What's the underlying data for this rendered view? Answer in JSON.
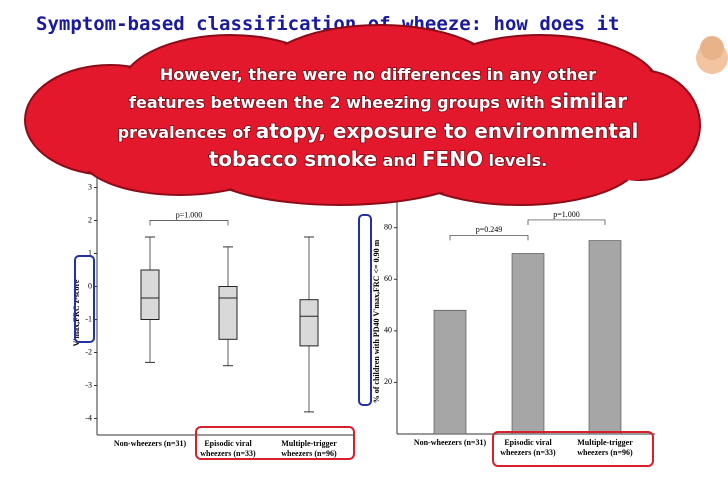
{
  "slide_title": "Symptom-based classification of wheeze: how does it",
  "callout": [
    [
      {
        "text": "However, there were no differences in any other",
        "big": false
      }
    ],
    [
      {
        "text": "features between the 2 wheezing groups with ",
        "big": false
      },
      {
        "text": "similar",
        "big": true
      }
    ],
    [
      {
        "text": "prevalences of ",
        "big": false
      },
      {
        "text": "atopy, exposure to environmental",
        "big": true
      }
    ],
    [
      {
        "text": "tobacco smoke",
        "big": true
      },
      {
        "text": " and ",
        "big": false
      },
      {
        "text": "FENO",
        "big": true
      },
      {
        "text": " levels.",
        "big": false
      }
    ]
  ],
  "chart_data": [
    {
      "type": "box",
      "y_label": "V'max,FRC z-score",
      "categories": [
        [
          "Non-wheezers (n=31)"
        ],
        [
          "Episodic viral",
          "wheezers (n=33)"
        ],
        [
          "Multiple-trigger",
          "wheezers (n=96)"
        ]
      ],
      "boxes": [
        {
          "low": -2.3,
          "q1": -1.0,
          "median": -0.35,
          "q3": 0.5,
          "high": 1.5
        },
        {
          "low": -2.4,
          "q1": -1.6,
          "median": -0.35,
          "q3": 0.0,
          "high": 1.2
        },
        {
          "low": -3.8,
          "q1": -1.8,
          "median": -0.9,
          "q3": -0.4,
          "high": 1.5
        }
      ],
      "color": "#d9d9d9",
      "ylim": [
        -4.5,
        3.5
      ],
      "yticks": [
        -4,
        -3,
        -2,
        -1,
        0,
        1,
        2,
        3
      ],
      "annotations": [
        {
          "text": "p=1.000",
          "from": 0,
          "to": 1,
          "y": 2.0
        }
      ]
    },
    {
      "type": "bar",
      "y_label": "% of children with PD40 V'max,FRC <= 0.90 m",
      "categories": [
        [
          "Non-wheezers (n=31)"
        ],
        [
          "Episodic viral",
          "wheezers (n=33)"
        ],
        [
          "Multiple-trigger",
          "wheezers (n=96)"
        ]
      ],
      "values": [
        48,
        70,
        75
      ],
      "color": "#a6a6a6",
      "ylim": [
        0,
        95
      ],
      "yticks": [
        20,
        40,
        60,
        80
      ],
      "annotations": [
        {
          "text": "p=0.249",
          "from": 0,
          "to": 1,
          "y": 77
        },
        {
          "text": "p=1.000",
          "from": 1,
          "to": 2,
          "y": 83
        }
      ]
    }
  ]
}
